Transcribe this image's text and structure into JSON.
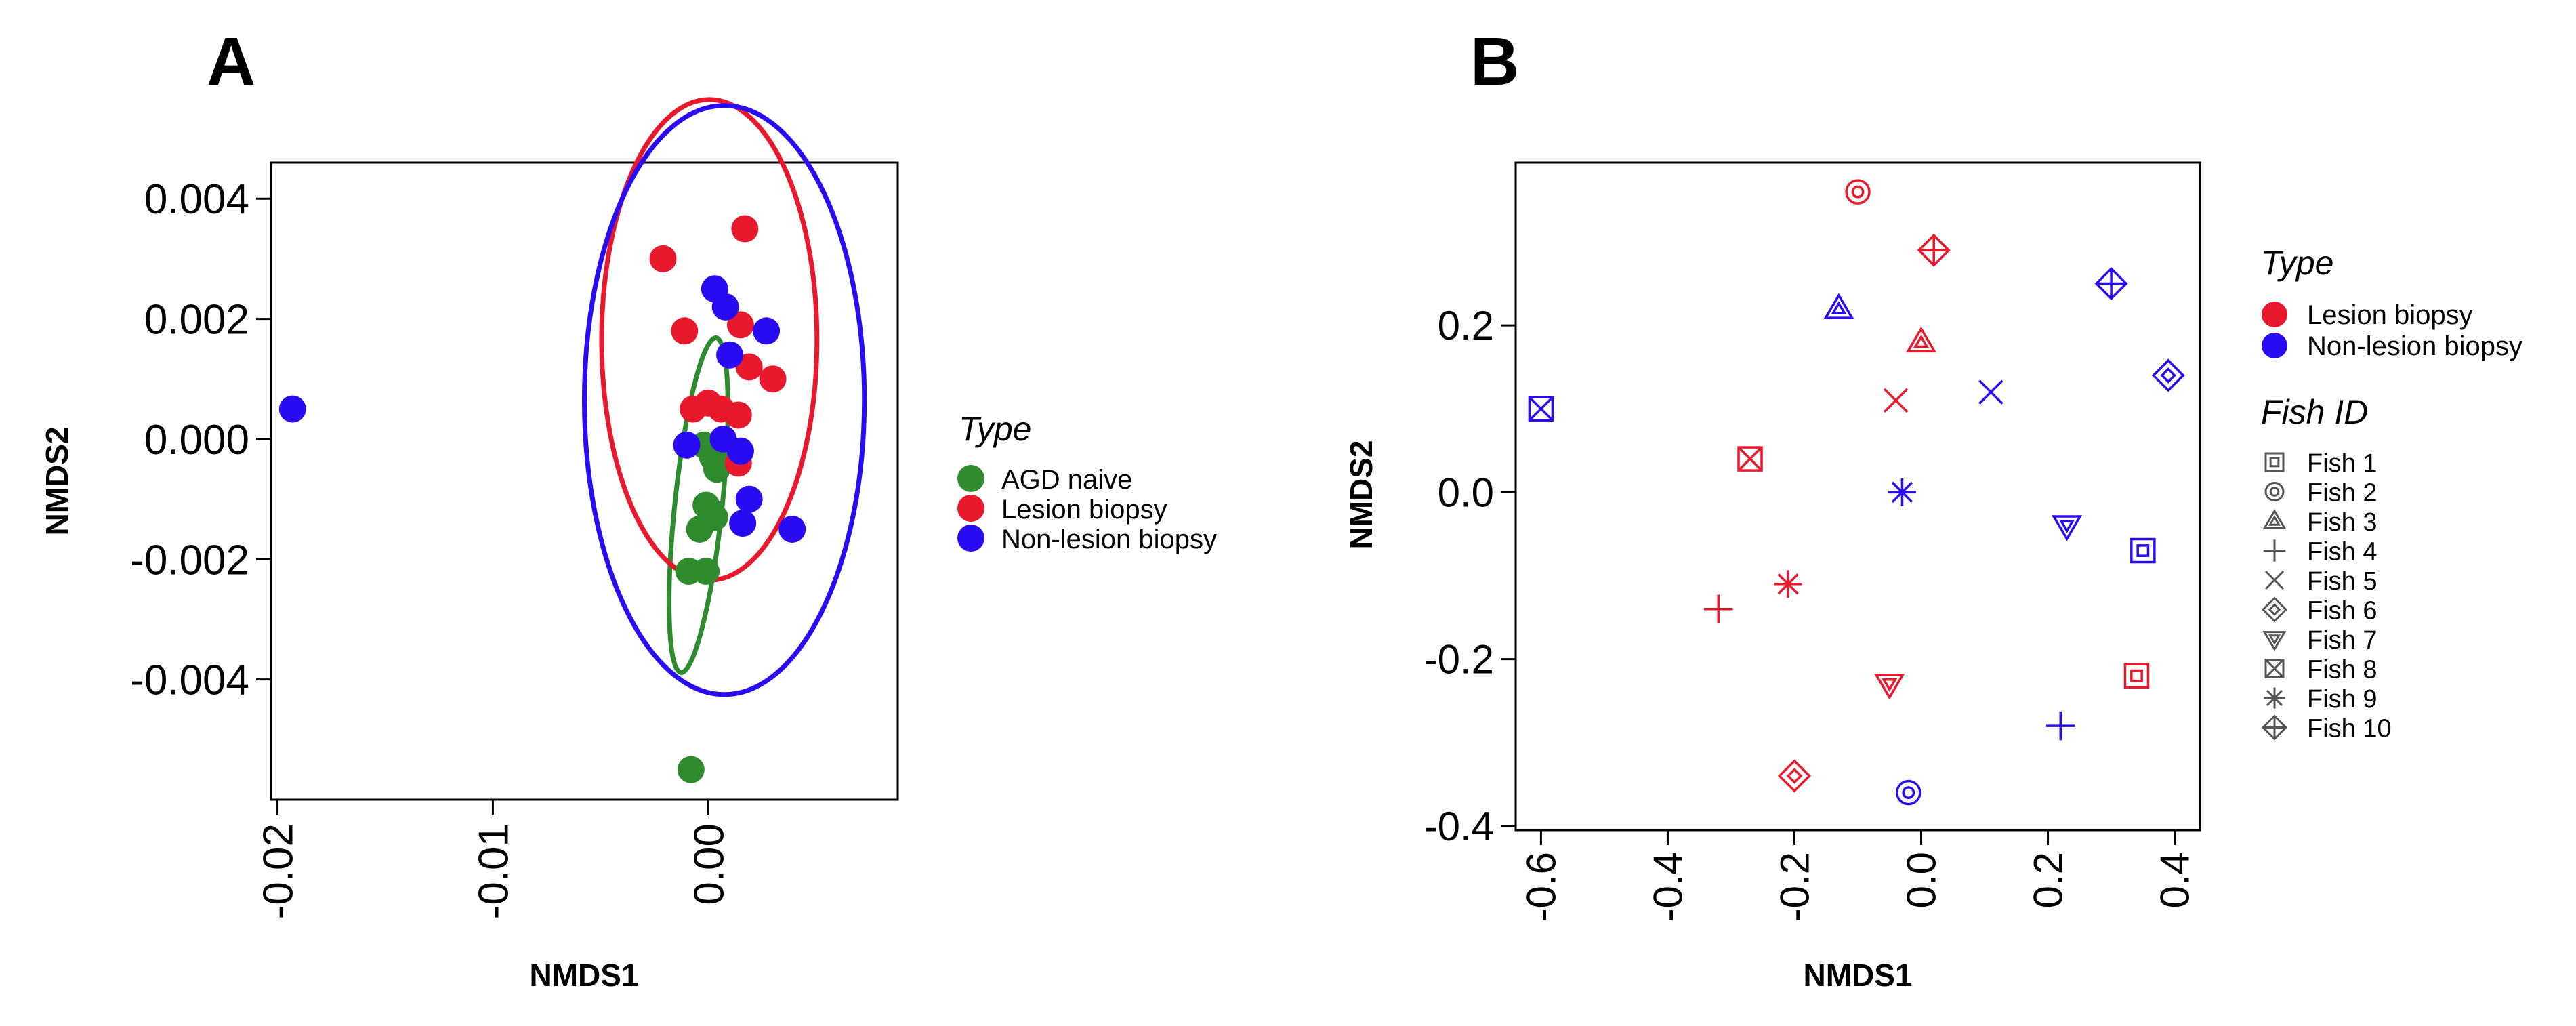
{
  "figure": {
    "panel_a_label": "A",
    "panel_b_label": "B"
  },
  "colors": {
    "agd_naive": "#2e8b2e",
    "lesion": "#e8192c",
    "non_lesion": "#2a0cf2",
    "axis": "#000000",
    "legend_symbol": "#555555"
  },
  "chart_data": [
    {
      "type": "scatter",
      "panel": "A",
      "title": "",
      "xlabel": "NMDS1",
      "ylabel": "NMDS2",
      "xlim": [
        -0.0203,
        0.0088
      ],
      "ylim": [
        -0.006,
        0.0046
      ],
      "xticks": [
        -0.02,
        -0.01,
        0.0
      ],
      "xtick_labels": [
        "-0.02",
        "-0.01",
        "0.00"
      ],
      "yticks": [
        -0.004,
        -0.002,
        0.0,
        0.002,
        0.004
      ],
      "ytick_labels": [
        "-0.004",
        "-0.002",
        "0.000",
        "0.002",
        "0.004"
      ],
      "grid": false,
      "legend": {
        "title": "Type",
        "position": "right",
        "entries": [
          {
            "label": "AGD naive",
            "color_key": "agd_naive"
          },
          {
            "label": "Lesion biopsy",
            "color_key": "lesion"
          },
          {
            "label": "Non-lesion biopsy",
            "color_key": "non_lesion"
          }
        ]
      },
      "series": [
        {
          "name": "AGD naive",
          "color_key": "agd_naive",
          "points": [
            [
              -0.0002,
              -0.0001
            ],
            [
              0.0002,
              -0.0003
            ],
            [
              0.0004,
              -0.0005
            ],
            [
              -0.0001,
              -0.0011
            ],
            [
              0.0001,
              -0.0012
            ],
            [
              0.0003,
              -0.0013
            ],
            [
              -0.0004,
              -0.0015
            ],
            [
              -0.0009,
              -0.0022
            ],
            [
              -0.0001,
              -0.0022
            ],
            [
              -0.0008,
              -0.0055
            ]
          ]
        },
        {
          "name": "Lesion biopsy",
          "color_key": "lesion",
          "points": [
            [
              -0.0021,
              0.003
            ],
            [
              0.0017,
              0.0035
            ],
            [
              -0.0011,
              0.0018
            ],
            [
              0.0015,
              0.0019
            ],
            [
              0.0019,
              0.0012
            ],
            [
              0.003,
              0.001
            ],
            [
              -0.0007,
              0.0005
            ],
            [
              0.0,
              0.0006
            ],
            [
              0.0006,
              0.0005
            ],
            [
              0.0014,
              0.0004
            ],
            [
              0.0014,
              -0.0004
            ]
          ]
        },
        {
          "name": "Non-lesion biopsy",
          "color_key": "non_lesion",
          "points": [
            [
              -0.0193,
              0.0005
            ],
            [
              0.0003,
              0.0025
            ],
            [
              0.0008,
              0.0022
            ],
            [
              0.0027,
              0.0018
            ],
            [
              0.001,
              0.0014
            ],
            [
              -0.001,
              -0.0001
            ],
            [
              0.0007,
              0.0
            ],
            [
              0.0015,
              -0.0002
            ],
            [
              0.0019,
              -0.001
            ],
            [
              0.0016,
              -0.0014
            ],
            [
              0.0039,
              -0.0015
            ]
          ]
        }
      ],
      "ellipses": [
        {
          "group": "AGD naive",
          "color_key": "agd_naive",
          "center": [
            -0.00045,
            -0.0011
          ],
          "rx_data": 0.0011,
          "ry_data": 0.0028,
          "angle_deg": 6
        },
        {
          "group": "Lesion biopsy",
          "color_key": "lesion",
          "center": [
            5e-05,
            0.00165
          ],
          "rx_data": 0.005,
          "ry_data": 0.004,
          "angle_deg": 0
        },
        {
          "group": "Non-lesion biopsy",
          "color_key": "non_lesion",
          "center": [
            0.00075,
            0.00065
          ],
          "rx_data": 0.0065,
          "ry_data": 0.0049,
          "angle_deg": 0
        }
      ]
    },
    {
      "type": "scatter",
      "panel": "B",
      "title": "",
      "xlabel": "NMDS1",
      "ylabel": "NMDS2",
      "xlim": [
        -0.64,
        0.44
      ],
      "ylim": [
        -0.405,
        0.395
      ],
      "xticks": [
        -0.6,
        -0.4,
        -0.2,
        0.0,
        0.2,
        0.4
      ],
      "xtick_labels": [
        "-0.6",
        "-0.4",
        "-0.2",
        "0.0",
        "0.2",
        "0.4"
      ],
      "yticks": [
        -0.4,
        -0.2,
        0.0,
        0.2
      ],
      "ytick_labels": [
        "-0.4",
        "-0.2",
        "0.0",
        "0.2"
      ],
      "grid": false,
      "legend_type": {
        "title": "Type",
        "entries": [
          {
            "label": "Lesion biopsy",
            "color_key": "lesion"
          },
          {
            "label": "Non-lesion biopsy",
            "color_key": "non_lesion"
          }
        ]
      },
      "legend_fish": {
        "title": "Fish ID",
        "entries": [
          {
            "label": "Fish 1",
            "shape": "square-dot"
          },
          {
            "label": "Fish 2",
            "shape": "circle-dot"
          },
          {
            "label": "Fish 3",
            "shape": "triangle-inner"
          },
          {
            "label": "Fish 4",
            "shape": "plus"
          },
          {
            "label": "Fish 5",
            "shape": "cross"
          },
          {
            "label": "Fish 6",
            "shape": "diamond-inner"
          },
          {
            "label": "Fish 7",
            "shape": "down-triangle-inner"
          },
          {
            "label": "Fish 8",
            "shape": "square-x"
          },
          {
            "label": "Fish 9",
            "shape": "asterisk"
          },
          {
            "label": "Fish 10",
            "shape": "diamond-plus"
          }
        ]
      },
      "points": [
        {
          "fish": "Fish 2",
          "shape": "circle-dot",
          "color_key": "lesion",
          "x": -0.1,
          "y": 0.36
        },
        {
          "fish": "Fish 10",
          "shape": "diamond-plus",
          "color_key": "lesion",
          "x": 0.02,
          "y": 0.29
        },
        {
          "fish": "Fish 3",
          "shape": "triangle-inner",
          "color_key": "non_lesion",
          "x": -0.13,
          "y": 0.22
        },
        {
          "fish": "Fish 10",
          "shape": "diamond-plus",
          "color_key": "non_lesion",
          "x": 0.3,
          "y": 0.25
        },
        {
          "fish": "Fish 3",
          "shape": "triangle-inner",
          "color_key": "lesion",
          "x": 0.0,
          "y": 0.18
        },
        {
          "fish": "Fish 6",
          "shape": "diamond-inner",
          "color_key": "non_lesion",
          "x": 0.39,
          "y": 0.14
        },
        {
          "fish": "Fish 5",
          "shape": "cross",
          "color_key": "lesion",
          "x": -0.04,
          "y": 0.11
        },
        {
          "fish": "Fish 5",
          "shape": "cross",
          "color_key": "non_lesion",
          "x": 0.11,
          "y": 0.12
        },
        {
          "fish": "Fish 8",
          "shape": "square-x",
          "color_key": "non_lesion",
          "x": -0.6,
          "y": 0.1
        },
        {
          "fish": "Fish 8",
          "shape": "square-x",
          "color_key": "lesion",
          "x": -0.27,
          "y": 0.04
        },
        {
          "fish": "Fish 9",
          "shape": "asterisk",
          "color_key": "non_lesion",
          "x": -0.03,
          "y": 0.0
        },
        {
          "fish": "Fish 7",
          "shape": "down-triangle-inner",
          "color_key": "non_lesion",
          "x": 0.23,
          "y": -0.04
        },
        {
          "fish": "Fish 1",
          "shape": "square-dot",
          "color_key": "non_lesion",
          "x": 0.35,
          "y": -0.07
        },
        {
          "fish": "Fish 9",
          "shape": "asterisk",
          "color_key": "lesion",
          "x": -0.21,
          "y": -0.11
        },
        {
          "fish": "Fish 4",
          "shape": "plus",
          "color_key": "lesion",
          "x": -0.32,
          "y": -0.14
        },
        {
          "fish": "Fish 1",
          "shape": "square-dot",
          "color_key": "lesion",
          "x": 0.34,
          "y": -0.22
        },
        {
          "fish": "Fish 7",
          "shape": "down-triangle-inner",
          "color_key": "lesion",
          "x": -0.05,
          "y": -0.23
        },
        {
          "fish": "Fish 4",
          "shape": "plus",
          "color_key": "non_lesion",
          "x": 0.22,
          "y": -0.28
        },
        {
          "fish": "Fish 6",
          "shape": "diamond-inner",
          "color_key": "lesion",
          "x": -0.2,
          "y": -0.34
        },
        {
          "fish": "Fish 2",
          "shape": "circle-dot",
          "color_key": "non_lesion",
          "x": -0.02,
          "y": -0.36
        }
      ]
    }
  ]
}
